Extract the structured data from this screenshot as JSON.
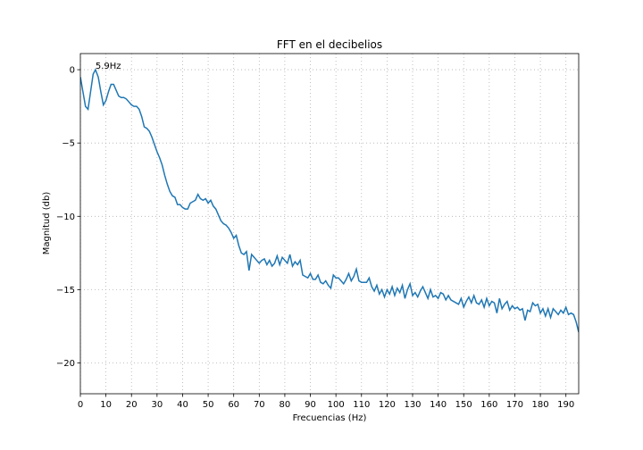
{
  "chart_data": {
    "type": "line",
    "title": "FFT en el decibelios",
    "x_label": "Frecuencias (Hz)",
    "y_label": "Magnitud (db)",
    "x": [
      0,
      1,
      2,
      3,
      4,
      5,
      5.9,
      7,
      8,
      9,
      10,
      11,
      12,
      13,
      14,
      15,
      16,
      17,
      18,
      19,
      20,
      21,
      22,
      23,
      24,
      25,
      26,
      27,
      28,
      29,
      30,
      31,
      32,
      33,
      34,
      35,
      36,
      37,
      38,
      39,
      40,
      41,
      42,
      43,
      44,
      45,
      46,
      47,
      48,
      49,
      50,
      51,
      52,
      53,
      54,
      55,
      56,
      57,
      58,
      59,
      60,
      61,
      62,
      63,
      64,
      65,
      66,
      67,
      68,
      69,
      70,
      71,
      72,
      73,
      74,
      75,
      76,
      77,
      78,
      79,
      80,
      81,
      82,
      83,
      84,
      85,
      86,
      87,
      88,
      89,
      90,
      91,
      92,
      93,
      94,
      95,
      96,
      97,
      98,
      99,
      100,
      101,
      102,
      103,
      104,
      105,
      106,
      107,
      108,
      109,
      110,
      111,
      112,
      113,
      114,
      115,
      116,
      117,
      118,
      119,
      120,
      121,
      122,
      123,
      124,
      125,
      126,
      127,
      128,
      129,
      130,
      131,
      132,
      133,
      134,
      135,
      136,
      137,
      138,
      139,
      140,
      141,
      142,
      143,
      144,
      145,
      146,
      147,
      148,
      149,
      150,
      151,
      152,
      153,
      154,
      155,
      156,
      157,
      158,
      159,
      160,
      161,
      162,
      163,
      164,
      165,
      166,
      167,
      168,
      169,
      170,
      171,
      172,
      173,
      174,
      175,
      176,
      177,
      178,
      179,
      180,
      181,
      182,
      183,
      184,
      185,
      186,
      187,
      188,
      189,
      190,
      191,
      192,
      193,
      194,
      195
    ],
    "series": [
      {
        "name": "FFT",
        "color": "#1f77b4",
        "values": [
          -0.5,
          -1.5,
          -2.5,
          -2.7,
          -1.5,
          -0.3,
          0,
          -0.5,
          -1.5,
          -2.4,
          -2.1,
          -1.5,
          -1.0,
          -1.0,
          -1.4,
          -1.8,
          -1.9,
          -1.9,
          -2.0,
          -2.2,
          -2.4,
          -2.5,
          -2.5,
          -2.7,
          -3.2,
          -3.9,
          -4.0,
          -4.2,
          -4.6,
          -5.1,
          -5.6,
          -6.0,
          -6.5,
          -7.2,
          -7.8,
          -8.3,
          -8.6,
          -8.7,
          -9.2,
          -9.2,
          -9.4,
          -9.5,
          -9.5,
          -9.1,
          -9.0,
          -8.9,
          -8.5,
          -8.8,
          -8.9,
          -8.8,
          -9.1,
          -8.9,
          -9.3,
          -9.5,
          -9.9,
          -10.3,
          -10.5,
          -10.6,
          -10.8,
          -11.1,
          -11.5,
          -11.3,
          -12.0,
          -12.5,
          -12.6,
          -12.4,
          -13.7,
          -12.6,
          -12.8,
          -13.0,
          -13.2,
          -13.0,
          -12.9,
          -13.3,
          -13.0,
          -13.4,
          -13.2,
          -12.7,
          -13.3,
          -12.8,
          -13.0,
          -13.2,
          -12.6,
          -13.4,
          -13.1,
          -13.3,
          -13.0,
          -14.0,
          -14.1,
          -14.2,
          -13.9,
          -14.3,
          -14.3,
          -14.0,
          -14.5,
          -14.6,
          -14.4,
          -14.7,
          -14.9,
          -14.0,
          -14.2,
          -14.2,
          -14.4,
          -14.6,
          -14.3,
          -13.9,
          -14.4,
          -14.1,
          -13.6,
          -14.4,
          -14.5,
          -14.5,
          -14.5,
          -14.2,
          -14.8,
          -15.1,
          -14.7,
          -15.3,
          -15.0,
          -15.5,
          -15.0,
          -15.3,
          -14.8,
          -15.4,
          -14.9,
          -15.2,
          -14.7,
          -15.6,
          -15.0,
          -14.6,
          -15.4,
          -15.2,
          -15.5,
          -15.1,
          -14.8,
          -15.2,
          -15.6,
          -15.0,
          -15.5,
          -15.4,
          -15.6,
          -15.2,
          -15.3,
          -15.7,
          -15.4,
          -15.7,
          -15.8,
          -15.9,
          -16.0,
          -15.6,
          -16.2,
          -15.8,
          -15.5,
          -15.9,
          -15.4,
          -15.9,
          -16.0,
          -15.7,
          -16.2,
          -15.6,
          -16.1,
          -15.8,
          -15.9,
          -16.6,
          -15.6,
          -16.3,
          -16.0,
          -15.8,
          -16.4,
          -16.1,
          -16.3,
          -16.2,
          -16.4,
          -16.3,
          -17.1,
          -16.4,
          -16.5,
          -15.9,
          -16.1,
          -16.0,
          -16.6,
          -16.3,
          -16.8,
          -16.3,
          -16.9,
          -16.3,
          -16.5,
          -16.7,
          -16.4,
          -16.6,
          -16.2,
          -16.7,
          -16.6,
          -16.7,
          -17.2,
          -17.9
        ]
      }
    ],
    "annotations": [
      {
        "text": "5.9Hz",
        "x": 5.9,
        "y": 0
      }
    ],
    "xlim": [
      0,
      195
    ],
    "ylim": [
      -22.1,
      1.1
    ],
    "xticks": [
      0,
      10,
      20,
      30,
      40,
      50,
      60,
      70,
      80,
      90,
      100,
      110,
      120,
      130,
      140,
      150,
      160,
      170,
      180,
      190
    ],
    "yticks": [
      0,
      {
        "value": -5,
        "label": "−5"
      },
      {
        "value": -10,
        "label": "−10"
      },
      {
        "value": -15,
        "label": "−15"
      },
      {
        "value": -20,
        "label": "−20"
      }
    ],
    "grid": true
  }
}
